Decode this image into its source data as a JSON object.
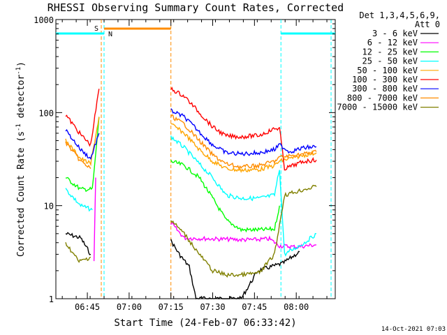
{
  "chart_data": {
    "type": "line",
    "title": "RHESSI Observing Summary Count Rates, Corrected",
    "xlabel": "Start Time (24-Feb-07 06:33:42)",
    "ylabel": "Corrected Count Rate (s",
    "ylabel_sup1": "-1",
    "ylabel_mid": " detector",
    "ylabel_sup2": "-1",
    "ylabel_end": ")",
    "yscale": "log",
    "ylim": [
      1,
      1000
    ],
    "xlim": [
      "06:33:42",
      "08:14:00"
    ],
    "x_ticks": [
      "06:45",
      "07:00",
      "07:15",
      "07:30",
      "07:45",
      "08:00"
    ],
    "y_ticks": [
      "1",
      "10",
      "100",
      "1000"
    ],
    "legend_header": [
      "Det 1,3,4,5,6,9,",
      "Att 0"
    ],
    "legend_placement": "right",
    "timestamp": "14-Oct-2021 07:03",
    "markers": {
      "saa_label": "S",
      "night_label": "N",
      "night_bars": [
        [
          "06:33:42",
          "06:51:00"
        ],
        [
          "07:54:30",
          "08:14:00"
        ]
      ],
      "saa_bar": [
        "06:51:00",
        "07:15:00"
      ],
      "vlines_cyan": [
        "06:51:00",
        "07:54:30",
        "08:12:30"
      ],
      "vlines_orange": [
        "06:50:00",
        "07:15:00"
      ]
    },
    "series": [
      {
        "name": "3 - 6 keV",
        "color": "#000000",
        "seg1": [
          [
            6.62,
            5
          ],
          [
            6.71,
            4.5
          ],
          [
            6.77,
            3
          ]
        ],
        "seg2": [
          [
            7.25,
            4.2
          ],
          [
            7.3,
            3
          ],
          [
            7.36,
            2.2
          ],
          [
            7.4,
            1
          ],
          [
            7.55,
            1
          ],
          [
            7.67,
            1
          ],
          [
            7.77,
            2
          ],
          [
            7.92,
            2.4
          ],
          [
            8.02,
            3.2
          ]
        ]
      },
      {
        "name": "6 - 12 keV",
        "color": "#ff00ff",
        "seg1": [
          [
            6.79,
            2.5
          ],
          [
            6.8,
            20
          ]
        ],
        "seg2": [
          [
            7.25,
            6.5
          ],
          [
            7.33,
            4.5
          ],
          [
            7.5,
            4.4
          ],
          [
            7.67,
            4.3
          ],
          [
            7.75,
            4.3
          ],
          [
            7.84,
            4.4
          ],
          [
            7.9,
            3.7
          ],
          [
            8.0,
            3.6
          ],
          [
            8.12,
            3.8
          ]
        ]
      },
      {
        "name": "12 - 25 keV",
        "color": "#00ff00",
        "seg1": [
          [
            6.62,
            20
          ],
          [
            6.71,
            15
          ],
          [
            6.78,
            15
          ],
          [
            6.8,
            35
          ],
          [
            6.82,
            90
          ]
        ],
        "seg2": [
          [
            7.25,
            30
          ],
          [
            7.33,
            27
          ],
          [
            7.42,
            20
          ],
          [
            7.5,
            12
          ],
          [
            7.58,
            7
          ],
          [
            7.67,
            5.5
          ],
          [
            7.78,
            5.5
          ],
          [
            7.87,
            5.6
          ],
          [
            7.9,
            10
          ]
        ]
      },
      {
        "name": "25 - 50 keV",
        "color": "#00ffff",
        "seg1": [
          [
            6.62,
            15
          ],
          [
            6.71,
            10
          ],
          [
            6.78,
            9
          ]
        ],
        "seg2": [
          [
            7.25,
            55
          ],
          [
            7.33,
            42
          ],
          [
            7.42,
            28
          ],
          [
            7.5,
            20
          ],
          [
            7.58,
            13
          ],
          [
            7.67,
            12
          ],
          [
            7.78,
            12
          ],
          [
            7.87,
            13
          ],
          [
            7.9,
            25
          ],
          [
            7.93,
            3
          ],
          [
            8.05,
            4
          ],
          [
            8.12,
            5
          ]
        ]
      },
      {
        "name": "50 - 100 keV",
        "color": "#ffa500",
        "seg1": [
          [
            6.62,
            50
          ],
          [
            6.71,
            32
          ],
          [
            6.77,
            28
          ],
          [
            6.82,
            90
          ]
        ],
        "seg2": [
          [
            7.25,
            75
          ],
          [
            7.33,
            60
          ],
          [
            7.42,
            40
          ],
          [
            7.5,
            30
          ],
          [
            7.58,
            25
          ],
          [
            7.67,
            24
          ],
          [
            7.78,
            24.5
          ],
          [
            7.87,
            27
          ],
          [
            7.9,
            30
          ],
          [
            7.96,
            32
          ],
          [
            8.05,
            35
          ],
          [
            8.12,
            37
          ]
        ]
      },
      {
        "name": "100 - 300 keV",
        "color": "#ff0000",
        "seg1": [
          [
            6.62,
            95
          ],
          [
            6.71,
            58
          ],
          [
            6.77,
            45
          ],
          [
            6.82,
            180
          ]
        ],
        "seg2": [
          [
            7.25,
            180
          ],
          [
            7.33,
            150
          ],
          [
            7.42,
            100
          ],
          [
            7.5,
            70
          ],
          [
            7.58,
            56
          ],
          [
            7.67,
            55
          ],
          [
            7.78,
            57
          ],
          [
            7.87,
            67
          ],
          [
            7.9,
            68
          ],
          [
            7.93,
            25
          ],
          [
            8.05,
            30
          ],
          [
            8.12,
            31
          ]
        ]
      },
      {
        "name": "300 - 800 keV",
        "color": "#0000ff",
        "seg1": [
          [
            6.62,
            65
          ],
          [
            6.71,
            40
          ],
          [
            6.77,
            32
          ],
          [
            6.82,
            60
          ]
        ],
        "seg2": [
          [
            7.25,
            105
          ],
          [
            7.33,
            90
          ],
          [
            7.42,
            62
          ],
          [
            7.5,
            45
          ],
          [
            7.58,
            37
          ],
          [
            7.67,
            36
          ],
          [
            7.78,
            37
          ],
          [
            7.87,
            40
          ],
          [
            7.9,
            45
          ],
          [
            7.96,
            38
          ],
          [
            8.05,
            42
          ],
          [
            8.12,
            43
          ]
        ]
      },
      {
        "name": "800 - 7000 keV",
        "color": "#ff8c00",
        "seg1": [
          [
            6.62,
            48
          ],
          [
            6.71,
            30
          ],
          [
            6.77,
            25
          ]
        ],
        "seg2": [
          [
            7.25,
            92
          ],
          [
            7.33,
            75
          ],
          [
            7.42,
            50
          ],
          [
            7.5,
            35
          ],
          [
            7.58,
            28
          ],
          [
            7.67,
            26
          ],
          [
            7.78,
            27
          ],
          [
            7.87,
            30
          ],
          [
            7.9,
            33
          ],
          [
            8.05,
            36
          ],
          [
            8.12,
            38
          ]
        ]
      },
      {
        "name": "7000 - 15000 keV",
        "color": "#808000",
        "seg1": [
          [
            6.62,
            4
          ],
          [
            6.7,
            2.5
          ],
          [
            6.77,
            2.8
          ]
        ],
        "seg2": [
          [
            7.25,
            7
          ],
          [
            7.33,
            5
          ],
          [
            7.42,
            3
          ],
          [
            7.5,
            2
          ],
          [
            7.58,
            1.8
          ],
          [
            7.67,
            1.8
          ],
          [
            7.78,
            1.9
          ],
          [
            7.87,
            3
          ],
          [
            7.93,
            13
          ],
          [
            8.05,
            15
          ],
          [
            8.12,
            16
          ]
        ]
      }
    ]
  }
}
